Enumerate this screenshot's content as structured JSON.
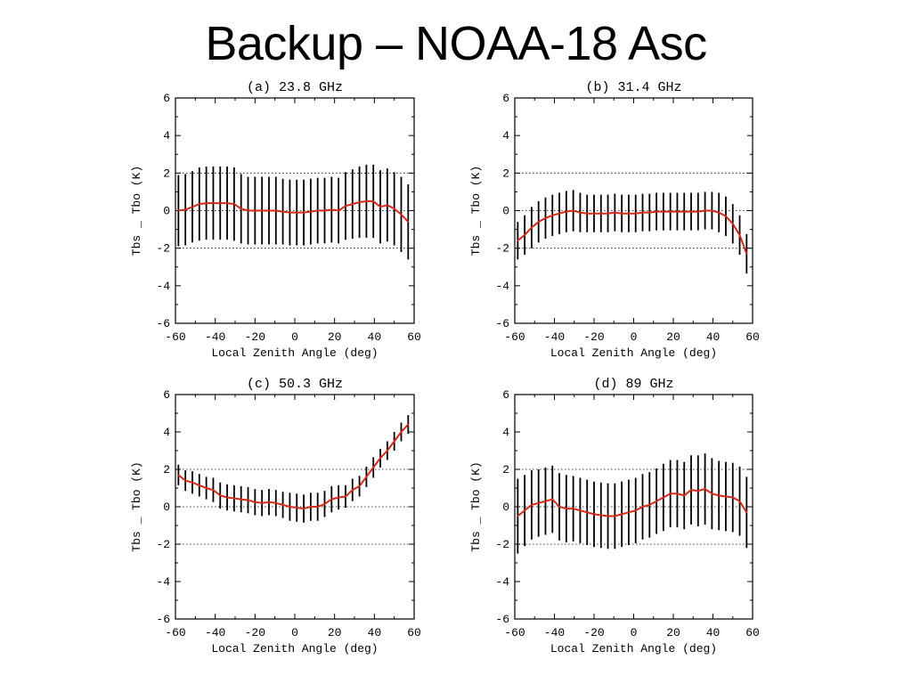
{
  "slide": {
    "title": "Backup – NOAA-18 Asc"
  },
  "colors": {
    "mean_line": "#d42a1a",
    "error_bar": "#000000",
    "reference_line": "#000000"
  },
  "chart_data": [
    {
      "type": "line",
      "title": "(a) 23.8 GHz",
      "xlabel": "Local Zenith Angle (deg)",
      "ylabel": "Tbs _ Tbo (K)",
      "xlim": [
        -60,
        60
      ],
      "ylim": [
        -6,
        6
      ],
      "xticks": [
        "-60",
        "-40",
        "-20",
        "0",
        "20",
        "40",
        "60"
      ],
      "yticks": [
        "-6",
        "-4",
        "-2",
        "0",
        "2",
        "4",
        "6"
      ],
      "reference_lines": [
        -2,
        0,
        2
      ],
      "grid": false,
      "series": [
        {
          "x": [
            -58.5,
            -55,
            -51.5,
            -48,
            -44.5,
            -41,
            -37.5,
            -34,
            -30.5,
            -27,
            -23.5,
            -20,
            -16.5,
            -13,
            -9.5,
            -6,
            -2.5,
            1,
            4.5,
            8,
            11.5,
            15,
            18.5,
            22,
            25.5,
            29,
            32.5,
            36,
            39.5,
            43,
            46.5,
            50,
            53.5,
            57
          ],
          "y": [
            0.0,
            0.05,
            0.2,
            0.35,
            0.4,
            0.4,
            0.4,
            0.4,
            0.35,
            0.1,
            0.0,
            0.0,
            0.0,
            0.0,
            0.0,
            -0.05,
            -0.1,
            -0.1,
            -0.1,
            -0.05,
            0.0,
            0.0,
            0.05,
            0.0,
            0.25,
            0.35,
            0.45,
            0.5,
            0.5,
            0.2,
            0.3,
            0.1,
            -0.2,
            -0.6
          ],
          "err": [
            1.9,
            1.9,
            1.9,
            1.95,
            1.95,
            1.95,
            1.95,
            1.95,
            1.95,
            1.85,
            1.8,
            1.8,
            1.8,
            1.8,
            1.8,
            1.75,
            1.75,
            1.75,
            1.75,
            1.75,
            1.75,
            1.75,
            1.75,
            1.75,
            1.8,
            1.85,
            1.9,
            1.95,
            1.95,
            1.95,
            1.95,
            1.95,
            2.0,
            2.0
          ]
        }
      ]
    },
    {
      "type": "line",
      "title": "(b) 31.4 GHz",
      "xlabel": "Local Zenith Angle (deg)",
      "ylabel": "Tbs _ Tbo (K)",
      "xlim": [
        -60,
        60
      ],
      "ylim": [
        -6,
        6
      ],
      "xticks": [
        "-60",
        "-40",
        "-20",
        "0",
        "20",
        "40",
        "60"
      ],
      "yticks": [
        "-6",
        "-4",
        "-2",
        "0",
        "2",
        "4",
        "6"
      ],
      "reference_lines": [
        -2,
        0,
        2
      ],
      "grid": false,
      "series": [
        {
          "x": [
            -58.5,
            -55,
            -51.5,
            -48,
            -44.5,
            -41,
            -37.5,
            -34,
            -30.5,
            -27,
            -23.5,
            -20,
            -16.5,
            -13,
            -9.5,
            -6,
            -2.5,
            1,
            4.5,
            8,
            11.5,
            15,
            18.5,
            22,
            25.5,
            29,
            32.5,
            36,
            39.5,
            43,
            46.5,
            50,
            53.5,
            57
          ],
          "y": [
            -1.6,
            -1.3,
            -0.9,
            -0.6,
            -0.4,
            -0.25,
            -0.15,
            -0.05,
            0.0,
            -0.1,
            -0.15,
            -0.15,
            -0.15,
            -0.15,
            -0.1,
            -0.15,
            -0.15,
            -0.15,
            -0.1,
            -0.1,
            -0.05,
            -0.05,
            -0.05,
            -0.05,
            -0.05,
            -0.05,
            -0.05,
            0.0,
            0.0,
            -0.1,
            -0.3,
            -0.7,
            -1.3,
            -2.3
          ],
          "err": [
            1.0,
            1.05,
            1.1,
            1.1,
            1.1,
            1.1,
            1.1,
            1.1,
            1.1,
            1.05,
            1.0,
            1.0,
            1.0,
            1.0,
            1.0,
            1.0,
            1.0,
            1.0,
            1.0,
            1.0,
            1.0,
            1.0,
            1.0,
            1.0,
            1.0,
            1.0,
            1.0,
            1.0,
            1.0,
            1.05,
            1.05,
            1.05,
            1.05,
            1.05
          ]
        }
      ]
    },
    {
      "type": "line",
      "title": "(c) 50.3 GHz",
      "xlabel": "Local Zenith Angle (deg)",
      "ylabel": "Tbs _ Tbo (K)",
      "xlim": [
        -60,
        60
      ],
      "ylim": [
        -6,
        6
      ],
      "xticks": [
        "-60",
        "-40",
        "-20",
        "0",
        "20",
        "40",
        "60"
      ],
      "yticks": [
        "-6",
        "-4",
        "-2",
        "0",
        "2",
        "4",
        "6"
      ],
      "reference_lines": [
        -2,
        0,
        2
      ],
      "grid": false,
      "series": [
        {
          "x": [
            -58.5,
            -55,
            -51.5,
            -48,
            -44.5,
            -41,
            -37.5,
            -34,
            -30.5,
            -27,
            -23.5,
            -20,
            -16.5,
            -13,
            -9.5,
            -6,
            -2.5,
            1,
            4.5,
            8,
            11.5,
            15,
            18.5,
            22,
            25.5,
            29,
            32.5,
            36,
            39.5,
            43,
            46.5,
            50,
            53.5,
            57
          ],
          "y": [
            1.7,
            1.4,
            1.3,
            1.15,
            1.0,
            0.9,
            0.6,
            0.5,
            0.45,
            0.4,
            0.35,
            0.25,
            0.2,
            0.25,
            0.2,
            0.1,
            0.0,
            -0.05,
            -0.1,
            0.0,
            0.0,
            0.15,
            0.4,
            0.5,
            0.55,
            0.9,
            1.1,
            1.6,
            2.1,
            2.6,
            3.0,
            3.5,
            4.0,
            4.4
          ],
          "err": [
            0.55,
            0.55,
            0.6,
            0.6,
            0.6,
            0.65,
            0.7,
            0.7,
            0.7,
            0.7,
            0.7,
            0.7,
            0.7,
            0.7,
            0.7,
            0.7,
            0.75,
            0.75,
            0.75,
            0.75,
            0.75,
            0.7,
            0.7,
            0.65,
            0.6,
            0.6,
            0.55,
            0.55,
            0.55,
            0.5,
            0.5,
            0.5,
            0.5,
            0.5
          ]
        }
      ]
    },
    {
      "type": "line",
      "title": "(d) 89 GHz",
      "xlabel": "Local Zenith Angle (deg)",
      "ylabel": "Tbs _ Tbo (K)",
      "xlim": [
        -60,
        60
      ],
      "ylim": [
        -6,
        6
      ],
      "xticks": [
        "-60",
        "-40",
        "-20",
        "0",
        "20",
        "40",
        "60"
      ],
      "yticks": [
        "-6",
        "-4",
        "-2",
        "0",
        "2",
        "4",
        "6"
      ],
      "reference_lines": [
        -2,
        0,
        2
      ],
      "grid": false,
      "series": [
        {
          "x": [
            -58.5,
            -55,
            -51.5,
            -48,
            -44.5,
            -41,
            -37.5,
            -34,
            -30.5,
            -27,
            -23.5,
            -20,
            -16.5,
            -13,
            -9.5,
            -6,
            -2.5,
            1,
            4.5,
            8,
            11.5,
            15,
            18.5,
            22,
            25.5,
            29,
            32.5,
            36,
            39.5,
            43,
            46.5,
            50,
            53.5,
            57
          ],
          "y": [
            -0.5,
            -0.2,
            0.1,
            0.2,
            0.3,
            0.4,
            0.0,
            -0.1,
            -0.1,
            -0.2,
            -0.3,
            -0.4,
            -0.45,
            -0.5,
            -0.5,
            -0.4,
            -0.3,
            -0.2,
            0.0,
            0.1,
            0.3,
            0.5,
            0.7,
            0.7,
            0.6,
            0.9,
            0.85,
            0.95,
            0.7,
            0.6,
            0.55,
            0.5,
            0.3,
            -0.3
          ],
          "err": [
            2.0,
            1.9,
            1.85,
            1.8,
            1.8,
            1.8,
            1.8,
            1.8,
            1.75,
            1.75,
            1.75,
            1.75,
            1.75,
            1.75,
            1.75,
            1.75,
            1.75,
            1.75,
            1.75,
            1.75,
            1.75,
            1.8,
            1.8,
            1.8,
            1.8,
            1.85,
            1.9,
            1.9,
            1.9,
            1.85,
            1.85,
            1.85,
            1.85,
            1.9
          ]
        }
      ]
    }
  ]
}
